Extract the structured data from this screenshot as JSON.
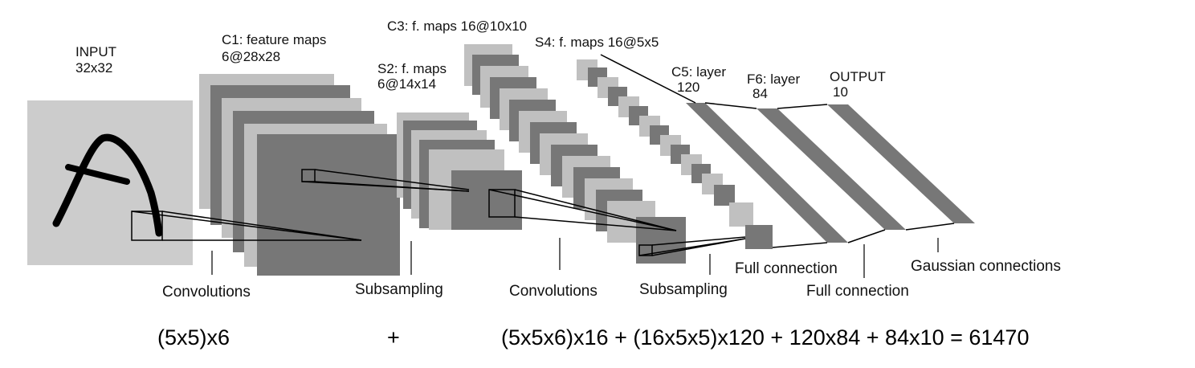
{
  "layers": {
    "input": {
      "name": "INPUT",
      "size": "32x32"
    },
    "c1": {
      "name": "C1: feature maps",
      "size": "6@28x28"
    },
    "s2": {
      "name": "S2: f. maps",
      "size": "6@14x14"
    },
    "c3": {
      "name": "C3: f. maps 16@10x10"
    },
    "s4": {
      "name": "S4: f. maps 16@5x5"
    },
    "c5": {
      "name": "C5: layer",
      "size": "120"
    },
    "f6": {
      "name": "F6: layer",
      "size": "84"
    },
    "output": {
      "name": "OUTPUT",
      "size": "10"
    }
  },
  "operations": {
    "conv1": "Convolutions",
    "sub1": "Subsampling",
    "conv2": "Convolutions",
    "sub2": "Subsampling",
    "full1": "Full connection",
    "full2": "Full connection",
    "gauss": "Gaussian connections"
  },
  "formula": {
    "part1": "(5x5)x6",
    "plus": "+",
    "part2": "(5x5x6)x16 + (16x5x5)x120 + 120x84 + 84x10 = 61470"
  },
  "colors": {
    "light_map": "#c0c0c0",
    "dark_map": "#777777",
    "input_bg": "#cccccc",
    "stroke": "#000000"
  }
}
